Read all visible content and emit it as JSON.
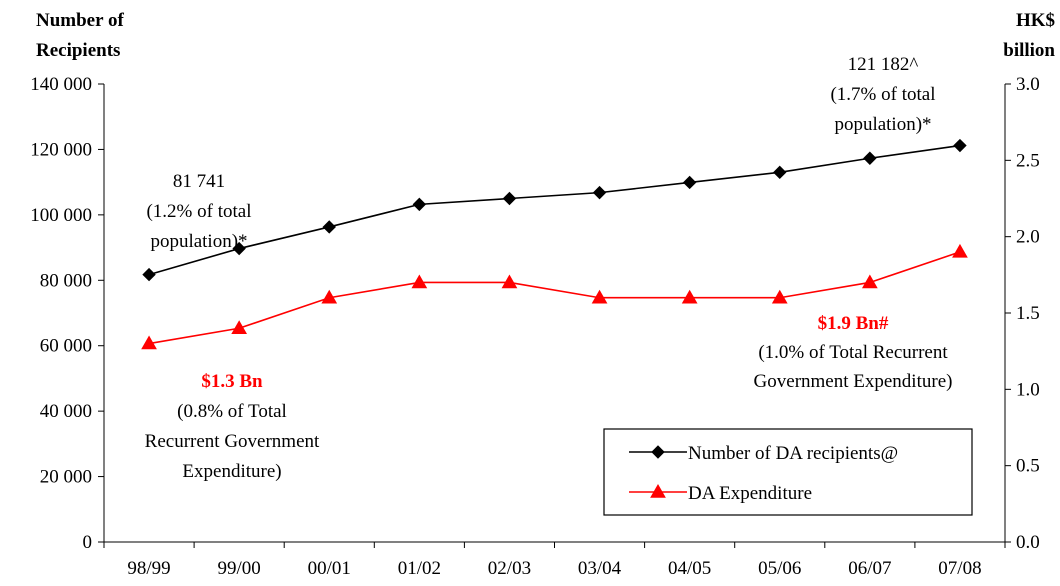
{
  "chart_data": {
    "type": "line",
    "categories": [
      "98/99",
      "99/00",
      "00/01",
      "01/02",
      "02/03",
      "03/04",
      "04/05",
      "05/06",
      "06/07",
      "07/08"
    ],
    "series": [
      {
        "name": "Number of DA recipients@",
        "axis": "left",
        "color": "#000000",
        "marker": "diamond",
        "values": [
          81741,
          89700,
          96300,
          103200,
          105000,
          106800,
          109900,
          113000,
          117300,
          121182
        ]
      },
      {
        "name": "DA Expenditure",
        "axis": "right",
        "color": "#ff0000",
        "marker": "triangle",
        "values": [
          1.3,
          1.4,
          1.6,
          1.7,
          1.7,
          1.6,
          1.6,
          1.6,
          1.7,
          1.9
        ]
      }
    ],
    "y_left": {
      "label_lines": [
        "Number of",
        "Recipients"
      ],
      "ylim": [
        0,
        140000
      ],
      "ticks": [
        {
          "value": 0,
          "label": "0"
        },
        {
          "value": 20000,
          "label": "20 000"
        },
        {
          "value": 40000,
          "label": "40 000"
        },
        {
          "value": 60000,
          "label": "60 000"
        },
        {
          "value": 80000,
          "label": "80 000"
        },
        {
          "value": 100000,
          "label": "100 000"
        },
        {
          "value": 120000,
          "label": "120 000"
        },
        {
          "value": 140000,
          "label": "140 000"
        }
      ]
    },
    "y_right": {
      "label_lines": [
        "HK$",
        "billion"
      ],
      "ylim": [
        0,
        3.0
      ],
      "ticks": [
        {
          "value": 0,
          "label": "0.0"
        },
        {
          "value": 0.5,
          "label": "0.5"
        },
        {
          "value": 1.0,
          "label": "1.0"
        },
        {
          "value": 1.5,
          "label": "1.5"
        },
        {
          "value": 2.0,
          "label": "2.0"
        },
        {
          "value": 2.5,
          "label": "2.5"
        },
        {
          "value": 3.0,
          "label": "3.0"
        }
      ]
    },
    "grid": false,
    "legend_position": "bottom-right",
    "annotations": [
      {
        "id": "start-recipients",
        "color": "#000000",
        "bold_first": false,
        "lines": [
          "81 741",
          "(1.2% of total",
          "population)*"
        ]
      },
      {
        "id": "end-recipients",
        "color": "#000000",
        "bold_first": false,
        "lines": [
          "121 182^",
          "(1.7% of total",
          "population)*"
        ]
      },
      {
        "id": "start-expenditure",
        "color": "#ff0000",
        "bold_first": true,
        "lines": [
          "$1.3 Bn",
          "(0.8% of Total",
          "Recurrent Government",
          "Expenditure)"
        ]
      },
      {
        "id": "end-expenditure",
        "color": "#ff0000",
        "bold_first": true,
        "lines": [
          "$1.9 Bn#",
          "(1.0% of Total Recurrent",
          "Government Expenditure)"
        ]
      }
    ]
  }
}
